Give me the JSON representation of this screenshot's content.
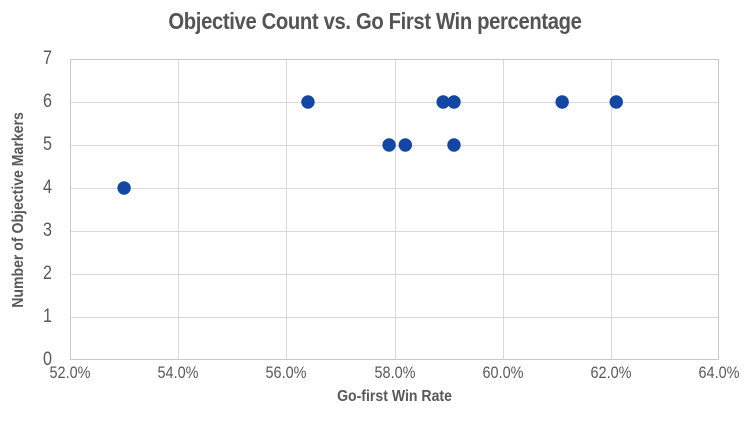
{
  "chart_data": {
    "type": "scatter",
    "title": "Objective Count vs. Go First Win percentage",
    "xlabel": "Go-first Win Rate",
    "ylabel": "Number of Objective Markers",
    "xlim": [
      52,
      64
    ],
    "ylim": [
      0,
      7
    ],
    "grid": true,
    "legend": false,
    "x_ticks": {
      "values": [
        52,
        54,
        56,
        58,
        60,
        62,
        64
      ],
      "labels": [
        "52.0%",
        "54.0%",
        "56.0%",
        "58.0%",
        "60.0%",
        "62.0%",
        "64.0%"
      ]
    },
    "y_ticks": {
      "values": [
        0,
        1,
        2,
        3,
        4,
        5,
        6,
        7
      ],
      "labels": [
        "0",
        "1",
        "2",
        "3",
        "4",
        "5",
        "6",
        "7"
      ]
    },
    "points": [
      {
        "x": 53.0,
        "y": 4
      },
      {
        "x": 56.4,
        "y": 6
      },
      {
        "x": 57.9,
        "y": 5
      },
      {
        "x": 58.2,
        "y": 5
      },
      {
        "x": 58.9,
        "y": 6
      },
      {
        "x": 59.1,
        "y": 6
      },
      {
        "x": 59.1,
        "y": 5
      },
      {
        "x": 61.1,
        "y": 6
      },
      {
        "x": 62.1,
        "y": 6
      }
    ],
    "colors": {
      "marker": "#1347A3",
      "text": "#595959",
      "title_text": "#545454",
      "gridline": "#D9D9D9",
      "plot_border": "#C9C9C9",
      "background": "#FFFFFF"
    }
  }
}
